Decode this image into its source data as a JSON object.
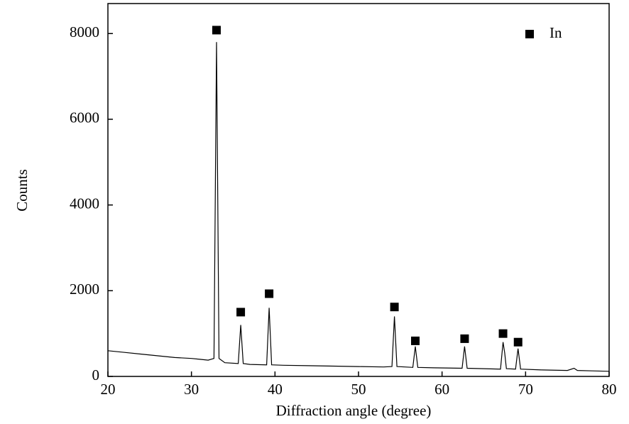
{
  "chart_data": {
    "type": "line",
    "xlabel": "Diffraction angle (degree)",
    "ylabel": "Counts",
    "xlim": [
      20,
      80
    ],
    "ylim": [
      0,
      8700
    ],
    "xticks": [
      20,
      30,
      40,
      50,
      60,
      70,
      80
    ],
    "yticks": [
      0,
      2000,
      4000,
      6000,
      8000
    ],
    "legend": "upper right",
    "series": [
      {
        "color": "#000000",
        "x": [
          20,
          22,
          24,
          26,
          28,
          30,
          31,
          32,
          32.7,
          33.0,
          33.3,
          34,
          35.6,
          35.9,
          36.2,
          37,
          39.0,
          39.3,
          39.6,
          41,
          44,
          47,
          50,
          53,
          54.0,
          54.3,
          54.6,
          56.5,
          56.8,
          57.1,
          59,
          62.4,
          62.7,
          63.0,
          65,
          67.0,
          67.3,
          67.5,
          67.7,
          68.8,
          69.1,
          69.4,
          72,
          75,
          75.8,
          76.2,
          78,
          80
        ],
        "values": [
          600,
          560,
          520,
          480,
          440,
          420,
          400,
          380,
          420,
          7800,
          420,
          320,
          300,
          1200,
          300,
          280,
          270,
          1600,
          270,
          260,
          250,
          240,
          230,
          220,
          230,
          1400,
          230,
          210,
          700,
          210,
          200,
          190,
          700,
          190,
          180,
          170,
          800,
          550,
          180,
          170,
          650,
          170,
          150,
          140,
          190,
          140,
          130,
          120
        ]
      },
      {
        "name": "In",
        "marker": "square",
        "color": "#000000",
        "x": [
          33.0,
          35.9,
          39.3,
          54.3,
          56.8,
          62.7,
          67.3,
          69.1
        ],
        "values": [
          8080,
          1500,
          1930,
          1620,
          830,
          880,
          1000,
          800
        ]
      }
    ]
  }
}
